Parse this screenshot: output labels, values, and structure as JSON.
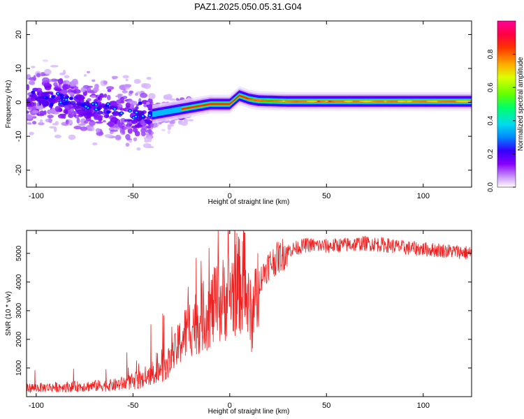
{
  "title": "PAZ1.2025.050.05.31.G04",
  "chart_data": [
    {
      "type": "heatmap",
      "xlabel": "Height of straight line (km)",
      "ylabel": "Frequency (Hz)",
      "xlim": [
        -105,
        125
      ],
      "ylim": [
        -25,
        24
      ],
      "xticks": [
        -100,
        -50,
        0,
        50,
        100
      ],
      "yticks": [
        -20,
        -10,
        0,
        10,
        20
      ],
      "colorbar": {
        "label": "Normalized spectral amplitude",
        "range": [
          0,
          1
        ],
        "ticks": [
          0.0,
          0.2,
          0.4,
          0.6,
          0.8
        ],
        "tick_labels": [
          "0.0",
          "0.2",
          "0.4",
          "0.6",
          "0.8"
        ],
        "colors": [
          "#ffffff",
          "#9900ff",
          "#3300ff",
          "#00ccff",
          "#00ff66",
          "#88ff00",
          "#ffff00",
          "#ff6600",
          "#ff0000",
          "#ff0088"
        ]
      },
      "ridge": {
        "description_points_x": [
          -105,
          -90,
          -75,
          -60,
          -50,
          -40,
          -30,
          -20,
          -10,
          0,
          5,
          10,
          15,
          30,
          60,
          90,
          125
        ],
        "description_points_y": [
          1.5,
          1.0,
          -1.0,
          -2.0,
          -4.0,
          -3.5,
          -2.5,
          -1.5,
          -0.5,
          -0.5,
          2.0,
          1.0,
          0.5,
          0.3,
          0.3,
          0.3,
          0.3
        ]
      }
    },
    {
      "type": "line",
      "xlabel": "Height of straight line (km)",
      "ylabel": "SNR (10 * v/v)",
      "xlim": [
        -105,
        125
      ],
      "ylim": [
        0,
        5800
      ],
      "xticks": [
        -100,
        -50,
        0,
        50,
        100
      ],
      "yticks": [
        1000,
        2000,
        3000,
        4000,
        5000
      ],
      "color": "#ee2222",
      "trend": {
        "x": [
          -105,
          -80,
          -60,
          -45,
          -35,
          -30,
          -25,
          -20,
          -15,
          -10,
          -5,
          0,
          5,
          8,
          10,
          12,
          15,
          20,
          30,
          40,
          50,
          60,
          70,
          80,
          90,
          100,
          110,
          120,
          125
        ],
        "y": [
          300,
          350,
          400,
          600,
          900,
          1300,
          2000,
          2500,
          2700,
          3000,
          3300,
          3600,
          3900,
          3700,
          3000,
          2600,
          4000,
          4600,
          5100,
          5300,
          5250,
          5300,
          5350,
          5300,
          5200,
          5150,
          5100,
          5050,
          5000
        ]
      }
    }
  ]
}
